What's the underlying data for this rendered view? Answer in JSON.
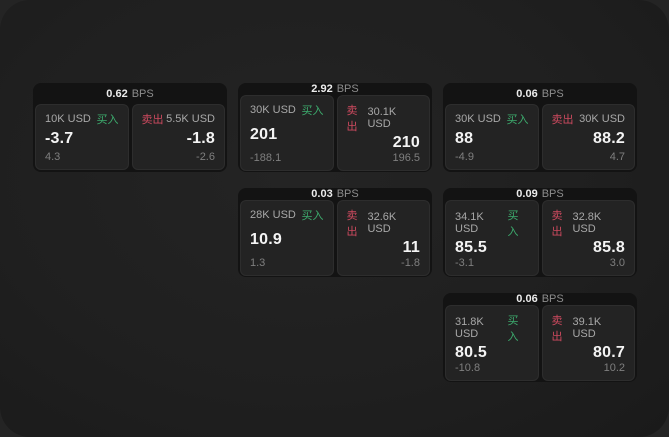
{
  "labels": {
    "bps_unit": "BPS",
    "buy": "买入",
    "sell": "卖出"
  },
  "colors": {
    "buy_green": "#3dac6e",
    "sell_red": "#ce4a5f",
    "card_background": "#131313",
    "panel_background": "#232323",
    "window_background": "#1f1f1f"
  },
  "cards": [
    {
      "bps": "0.62",
      "buy": {
        "amount": "10K USD",
        "value": "-3.7",
        "sub": "4.3"
      },
      "sell": {
        "amount": "5.5K USD",
        "value": "-1.8",
        "sub": "-2.6"
      }
    },
    {
      "bps": "2.92",
      "buy": {
        "amount": "30K USD",
        "value": "201",
        "sub": "-188.1"
      },
      "sell": {
        "amount": "30.1K USD",
        "value": "210",
        "sub": "196.5"
      }
    },
    {
      "bps": "0.06",
      "buy": {
        "amount": "30K USD",
        "value": "88",
        "sub": "-4.9"
      },
      "sell": {
        "amount": "30K USD",
        "value": "88.2",
        "sub": "4.7"
      }
    },
    {
      "bps": "0.03",
      "buy": {
        "amount": "28K USD",
        "value": "10.9",
        "sub": "1.3"
      },
      "sell": {
        "amount": "32.6K USD",
        "value": "11",
        "sub": "-1.8"
      }
    },
    {
      "bps": "0.09",
      "buy": {
        "amount": "34.1K USD",
        "value": "85.5",
        "sub": "-3.1"
      },
      "sell": {
        "amount": "32.8K USD",
        "value": "85.8",
        "sub": "3.0"
      }
    },
    {
      "bps": "0.06",
      "buy": {
        "amount": "31.8K USD",
        "value": "80.5",
        "sub": "-10.8"
      },
      "sell": {
        "amount": "39.1K USD",
        "value": "80.7",
        "sub": "10.2"
      }
    }
  ]
}
